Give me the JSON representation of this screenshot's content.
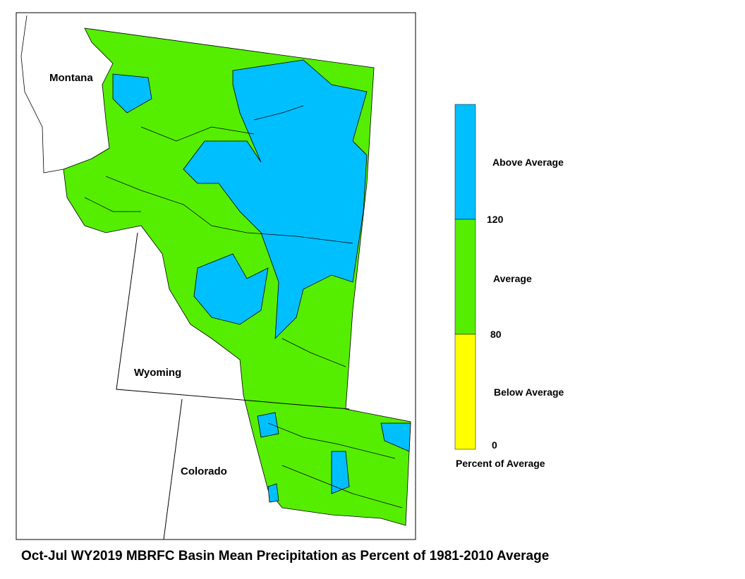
{
  "title": "Oct-Jul WY2019 MBRFC Basin Mean Precipitation as Percent of 1981-2010 Average",
  "map": {
    "labels": [
      "Montana",
      "Wyoming",
      "Colorado"
    ]
  },
  "legend": {
    "title": "Percent of Average",
    "classes": [
      {
        "label": "Above Average",
        "color": "#00bfff"
      },
      {
        "label": "Average",
        "color": "#55ee00"
      },
      {
        "label": "Below Average",
        "color": "#ffff00"
      }
    ],
    "breaks": [
      120,
      80,
      0
    ]
  }
}
